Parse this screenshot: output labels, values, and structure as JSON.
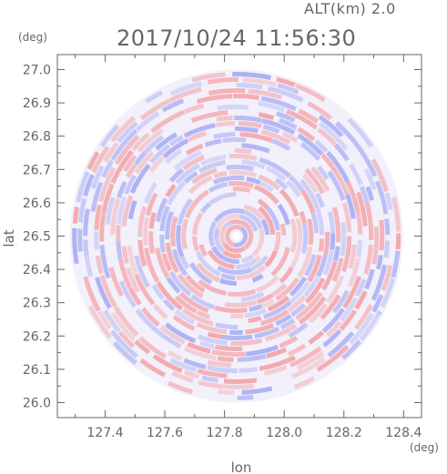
{
  "header": {
    "altitude_label": "ALT(km) 2.0",
    "timestamp": "2017/10/24 11:56:30"
  },
  "chart_data": {
    "type": "heatmap",
    "title": "",
    "xlabel": "lon",
    "ylabel": "lat",
    "x_unit": "(deg)",
    "y_unit": "(deg)",
    "xlim": [
      127.24,
      128.46
    ],
    "ylim": [
      25.955,
      27.045
    ],
    "x_ticks": [
      127.4,
      127.6,
      127.8,
      128.0,
      128.2,
      128.4
    ],
    "x_tick_labels": [
      "127.4",
      "127.6",
      "127.8",
      "128.0",
      "128.2",
      "128.4"
    ],
    "y_ticks": [
      26.0,
      26.1,
      26.2,
      26.3,
      26.4,
      26.5,
      26.6,
      26.7,
      26.8,
      26.9,
      27.0
    ],
    "y_tick_labels": [
      "26.0",
      "26.1",
      "26.2",
      "26.3",
      "26.4",
      "26.5",
      "26.6",
      "26.7",
      "26.8",
      "26.9",
      "27.0"
    ],
    "scan_center": {
      "lon": 127.84,
      "lat": 26.5
    },
    "scan_radius_deg_lat": 0.5,
    "colors": {
      "positive": "#f4a0a4",
      "negative": "#a4aaf4",
      "axis": "#666666"
    },
    "grid": false,
    "legend": "none"
  }
}
